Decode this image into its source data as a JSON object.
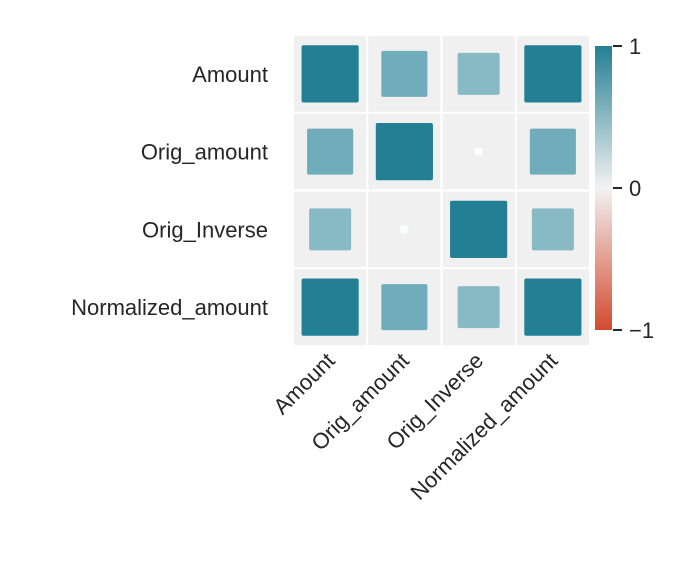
{
  "chart_data": {
    "type": "heatmap",
    "style": "square markers sized by |value|, colored by value",
    "rows": [
      "Amount",
      "Orig_amount",
      "Orig_Inverse",
      "Normalized_amount"
    ],
    "columns": [
      "Amount",
      "Orig_amount",
      "Orig_Inverse",
      "Normalized_amount"
    ],
    "values": [
      [
        1.0,
        0.65,
        0.54,
        1.0
      ],
      [
        0.65,
        1.0,
        0.02,
        0.65
      ],
      [
        0.54,
        0.02,
        1.0,
        0.54
      ],
      [
        1.0,
        0.65,
        0.54,
        1.0
      ]
    ],
    "colorbar": {
      "range": [
        -1,
        1
      ],
      "ticks": [
        "1",
        "0",
        "−1"
      ],
      "tick_values": [
        1,
        0,
        -1
      ],
      "colors": {
        "positive": "#237f94",
        "zero": "#f2f2f2",
        "negative": "#d44a2f"
      }
    },
    "cell_background": "#f0f0f0",
    "grid": false,
    "legend": "right"
  }
}
